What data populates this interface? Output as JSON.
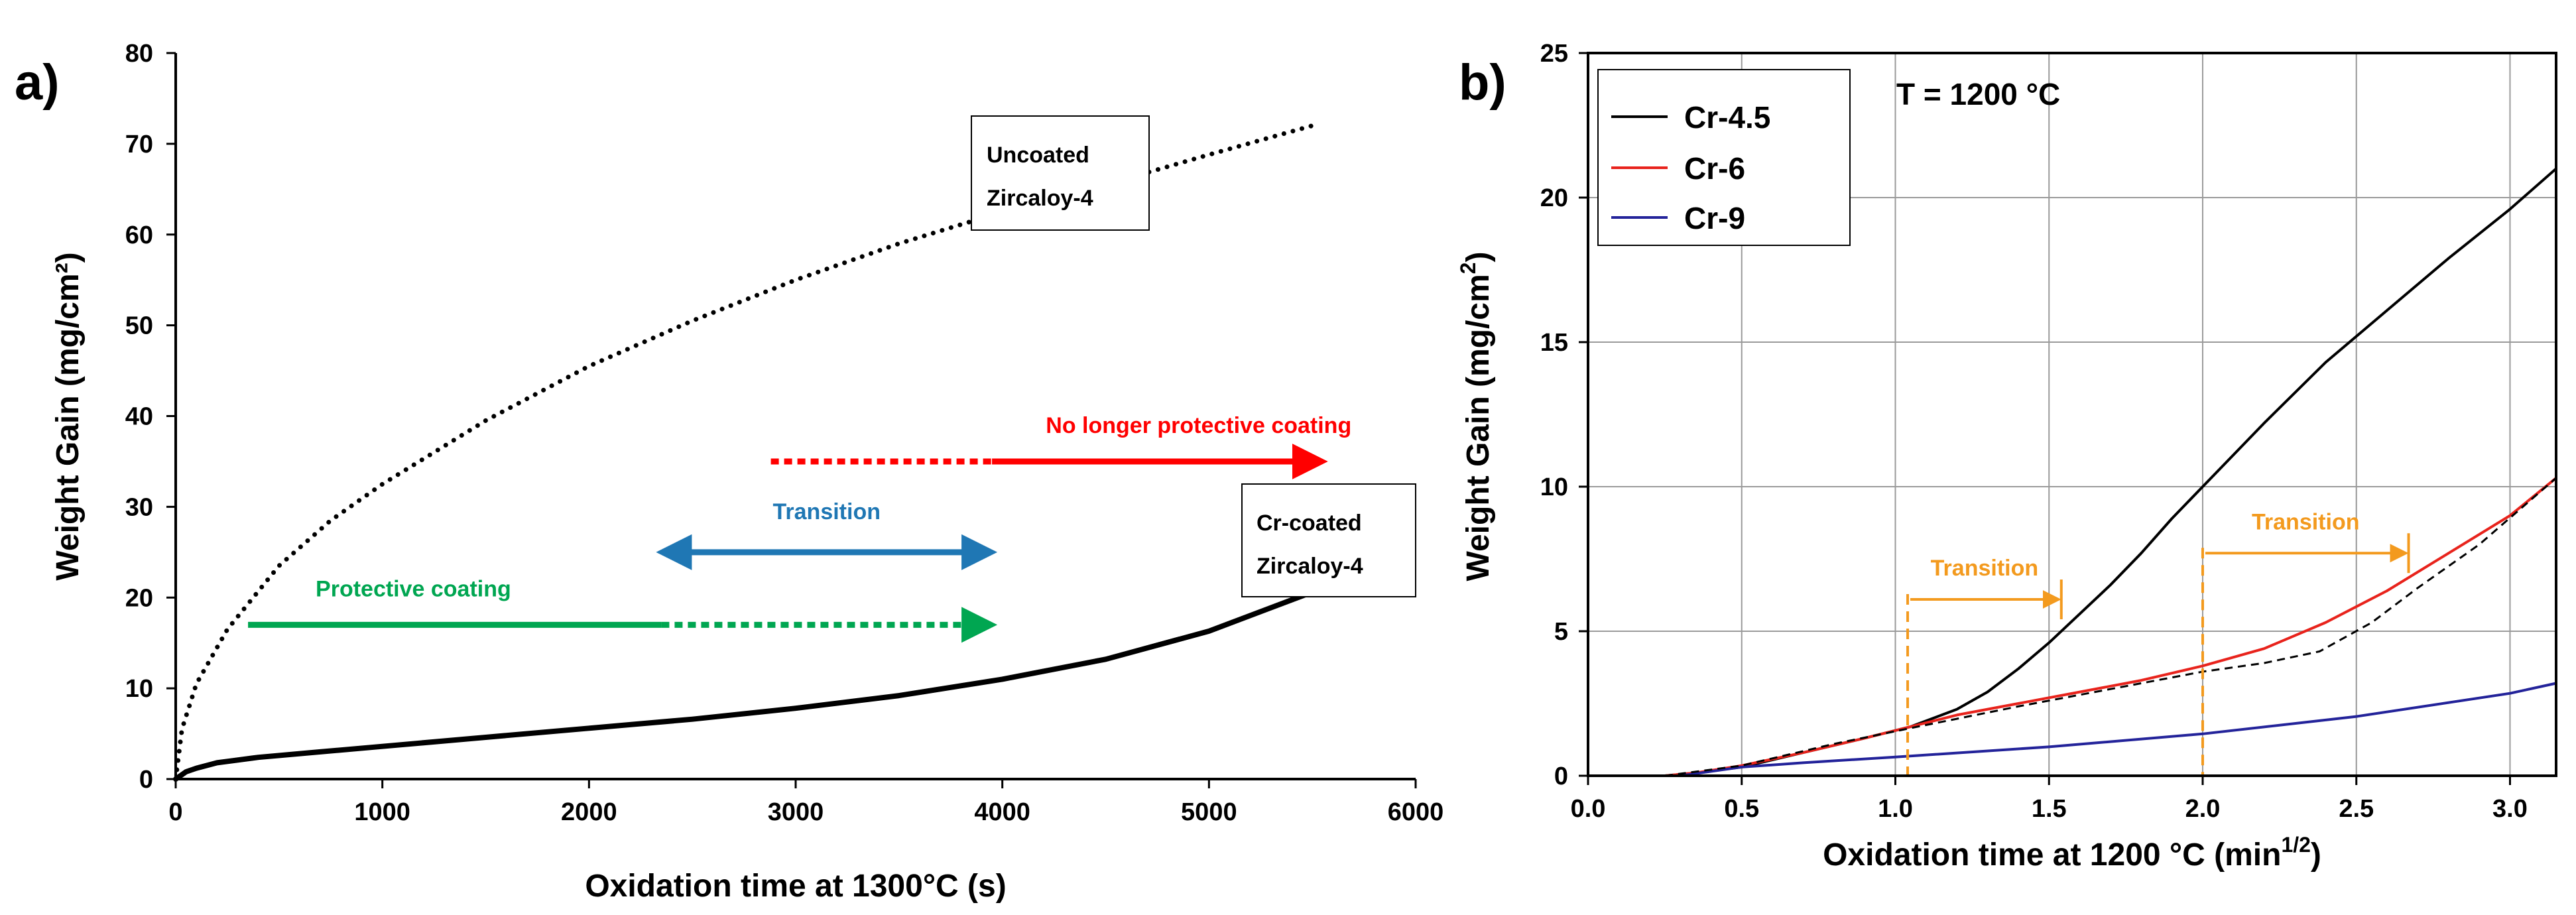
{
  "figure": {
    "panel_labels": [
      "a)",
      "b)"
    ]
  },
  "chart_data": [
    {
      "type": "line",
      "panel": "a)",
      "title": "",
      "xlabel": "Oxidation time at 1300°C (s)",
      "ylabel": "Weight Gain (mg/cm²)",
      "xlim": [
        0,
        6000
      ],
      "ylim": [
        0,
        80
      ],
      "xticks": [
        0,
        1000,
        2000,
        3000,
        4000,
        5000,
        6000
      ],
      "yticks": [
        0,
        10,
        20,
        30,
        40,
        50,
        60,
        70,
        80
      ],
      "grid": false,
      "series": [
        {
          "name": "Uncoated Zircaloy-4",
          "style": "dotted",
          "color": "#000000",
          "x": [
            0,
            30,
            100,
            250,
            500,
            750,
            1000,
            1500,
            2000,
            2500,
            3000,
            3500,
            4000,
            4500,
            5000,
            5500
          ],
          "y": [
            0,
            5.5,
            10.5,
            16.5,
            23.5,
            28.5,
            32.5,
            39.5,
            45.5,
            50.5,
            55,
            59,
            62.5,
            65.5,
            68.8,
            72
          ]
        },
        {
          "name": "Cr-coated Zircaloy-4",
          "style": "solid",
          "color": "#000000",
          "x": [
            0,
            50,
            100,
            200,
            400,
            700,
            1000,
            1500,
            2000,
            2500,
            3000,
            3500,
            4000,
            4500,
            5000,
            5500
          ],
          "y": [
            0,
            0.8,
            1.2,
            1.8,
            2.4,
            3.0,
            3.6,
            4.6,
            5.6,
            6.6,
            7.8,
            9.2,
            11.0,
            13.2,
            16.3,
            20.6
          ]
        }
      ],
      "annotations": [
        {
          "text": "Protective coating",
          "color": "#00a651",
          "x_start": 350,
          "x_solid_end": 2350,
          "x_end": 3950,
          "y": 17,
          "text_x": 1150,
          "text_y": 21
        },
        {
          "text": "Transition",
          "color": "#1f77b4",
          "x_start": 2350,
          "x_end": 3950,
          "y": 25,
          "text_x": 3150,
          "text_y": 29.5
        },
        {
          "text": "No longer protective coating",
          "color": "#ff0000",
          "x_start": 2880,
          "x_solid_end": 3950,
          "x_end": 5550,
          "y": 35,
          "text_x": 4950,
          "text_y": 39
        }
      ],
      "labels": [
        {
          "lines": [
            "Uncoated",
            "Zircaloy-4"
          ]
        },
        {
          "lines": [
            "Cr-coated",
            "Zircaloy-4"
          ]
        }
      ]
    },
    {
      "type": "line",
      "panel": "b)",
      "title": "T = 1200 °C",
      "xlabel": "Oxidation time at 1200 °C (min",
      "xlabel_sup": "1/2",
      "xlabel_end": ")",
      "ylabel": "Weight Gain (mg/cm",
      "ylabel_sup": "2",
      "ylabel_end": ")",
      "xlim": [
        0,
        3.15
      ],
      "ylim": [
        0,
        25
      ],
      "xticks": [
        0.0,
        0.5,
        1.0,
        1.5,
        2.0,
        2.5,
        3.0
      ],
      "xtick_labels": [
        "0.0",
        "0.5",
        "1.0",
        "1.5",
        "2.0",
        "2.5",
        "3.0"
      ],
      "yticks": [
        0,
        5,
        10,
        15,
        20,
        25
      ],
      "grid": true,
      "legend_position": "top-left",
      "series": [
        {
          "name": "Cr-4.5",
          "color": "#000000",
          "x": [
            0,
            0.25,
            0.35,
            0.5,
            0.7,
            0.9,
            1.05,
            1.2,
            1.3,
            1.4,
            1.5,
            1.6,
            1.7,
            1.8,
            1.9,
            2.0,
            2.2,
            2.4,
            2.6,
            2.8,
            3.0,
            3.15
          ],
          "y": [
            0,
            0,
            0.1,
            0.3,
            0.8,
            1.3,
            1.7,
            2.3,
            2.9,
            3.7,
            4.6,
            5.6,
            6.6,
            7.7,
            8.9,
            10.0,
            12.2,
            14.3,
            16.1,
            17.9,
            19.6,
            21
          ]
        },
        {
          "name": "Cr-6",
          "color": "#e8231c",
          "x": [
            0,
            0.25,
            0.35,
            0.5,
            0.7,
            0.9,
            1.05,
            1.2,
            1.4,
            1.6,
            1.8,
            2.0,
            2.2,
            2.4,
            2.6,
            2.8,
            3.0,
            3.15
          ],
          "y": [
            0,
            0,
            0.1,
            0.35,
            0.8,
            1.3,
            1.7,
            2.1,
            2.5,
            2.9,
            3.3,
            3.8,
            4.4,
            5.3,
            6.4,
            7.7,
            9.0,
            10.3
          ]
        },
        {
          "name": "Cr-9",
          "color": "#23239a",
          "x": [
            0,
            0.3,
            0.5,
            0.7,
            1.0,
            1.5,
            2.0,
            2.5,
            3.0,
            3.15
          ],
          "y": [
            0,
            0,
            0.3,
            0.45,
            0.65,
            1.0,
            1.45,
            2.05,
            2.85,
            3.2
          ]
        },
        {
          "name": "guide",
          "style": "dashed",
          "color": "#000000",
          "x": [
            0.25,
            0.5,
            0.8,
            1.05,
            1.4,
            1.8,
            2.0,
            2.2,
            2.38,
            2.55,
            2.7,
            2.9,
            3.15
          ],
          "y": [
            0,
            0.35,
            1.1,
            1.65,
            2.4,
            3.2,
            3.6,
            3.9,
            4.3,
            5.3,
            6.5,
            8.0,
            10.3
          ]
        }
      ],
      "annotations": [
        {
          "text": "Transition",
          "color": "#f39a1e",
          "x_start": 1.04,
          "x_end": 1.54,
          "y": 6.1,
          "dash_x": 1.04,
          "dash_y_top": 6.1
        },
        {
          "text": "Transition",
          "color": "#f39a1e",
          "x_start": 2.0,
          "x_end": 2.67,
          "y": 7.7,
          "dash_x": 2.0,
          "dash_y_top": 7.7
        }
      ]
    }
  ]
}
